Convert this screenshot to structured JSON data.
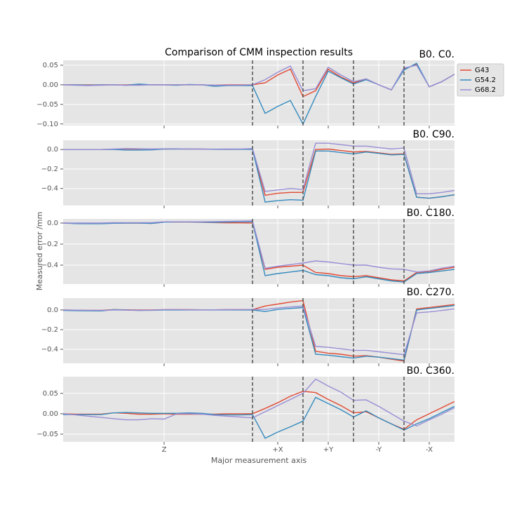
{
  "figure": {
    "title": "Comparison of CMM inspection results",
    "xlabel": "Major measurement axis",
    "ylabel": "Measured error /mm"
  },
  "chart_data": [
    {
      "type": "line",
      "title": "B0. C0.",
      "legend": "outside upper right",
      "x": [
        0,
        1,
        2,
        3,
        4,
        5,
        6,
        7,
        8,
        9,
        10,
        11,
        12,
        13,
        14,
        15,
        16,
        17,
        18,
        19,
        20,
        21,
        22,
        23,
        24,
        25,
        26,
        27,
        28,
        29,
        30,
        31
      ],
      "xlim": [
        0,
        31
      ],
      "xticks": [
        {
          "value": 8,
          "label": "Z"
        },
        {
          "value": 17,
          "label": "+X"
        },
        {
          "value": 21,
          "label": "+Y"
        },
        {
          "value": 25,
          "label": "-Y"
        },
        {
          "value": 29,
          "label": "-X"
        }
      ],
      "vlines": [
        15,
        19,
        23,
        27
      ],
      "ylim": [
        -0.104,
        0.0625
      ],
      "yticks": [
        0.05,
        {
          "value": 0,
          "label": "0.00"
        },
        {
          "value": -0.05,
          "label": "−0.05"
        },
        {
          "value": -0.1,
          "label": "−0.10"
        }
      ],
      "series": [
        {
          "name": "G43",
          "color": "#E24A33",
          "values": [
            0,
            0,
            0,
            0,
            0,
            0,
            0.001,
            0,
            0,
            0,
            0,
            0,
            -0.001,
            0,
            0,
            0,
            0.005,
            0.025,
            0.04,
            -0.03,
            -0.015,
            0.04,
            0.02,
            0.005,
            0.015,
            0,
            -0.013,
            0.04,
            0.052,
            -0.005,
            0.008,
            0.027
          ]
        },
        {
          "name": "G54.2",
          "color": "#348ABD",
          "values": [
            0,
            0,
            -0.001,
            0,
            0,
            -0.001,
            0.002,
            0,
            0,
            -0.001,
            0.001,
            0,
            -0.004,
            -0.002,
            -0.002,
            -0.002,
            -0.073,
            -0.055,
            -0.04,
            -0.1,
            -0.03,
            0.035,
            0.018,
            0.002,
            0.013,
            0,
            -0.013,
            0.038,
            0.055,
            -0.005,
            0.008,
            0.027
          ]
        },
        {
          "name": "G68.2",
          "color": "#988ED5",
          "values": [
            0,
            -0.001,
            -0.002,
            -0.001,
            0,
            -0.001,
            -0.001,
            0,
            0,
            0,
            0,
            0,
            -0.001,
            -0.001,
            -0.001,
            0,
            0.013,
            0.032,
            0.048,
            -0.015,
            -0.01,
            0.045,
            0.025,
            0.008,
            0.015,
            0,
            -0.013,
            0.043,
            0.05,
            -0.005,
            0.008,
            0.027
          ]
        }
      ]
    },
    {
      "type": "line",
      "title": "B0. C90.",
      "x": [
        0,
        1,
        2,
        3,
        4,
        5,
        6,
        7,
        8,
        9,
        10,
        11,
        12,
        13,
        14,
        15,
        16,
        17,
        18,
        19,
        20,
        21,
        22,
        23,
        24,
        25,
        26,
        27,
        28,
        29,
        30,
        31
      ],
      "xlim": [
        0,
        31
      ],
      "xticks": [
        {
          "value": 8,
          "label": "Z"
        },
        {
          "value": 17,
          "label": "+X"
        },
        {
          "value": 21,
          "label": "+Y"
        },
        {
          "value": 25,
          "label": "-Y"
        },
        {
          "value": 29,
          "label": "-X"
        }
      ],
      "vlines": [
        15,
        19,
        23,
        27
      ],
      "ylim": [
        -0.575,
        0.095
      ],
      "yticks": [
        {
          "value": 0,
          "label": "0.0"
        },
        {
          "value": -0.2,
          "label": "−0.2"
        },
        {
          "value": -0.4,
          "label": "−0.4"
        }
      ],
      "series": [
        {
          "name": "G43",
          "color": "#E24A33",
          "values": [
            0,
            0,
            0,
            0,
            0.003,
            0.005,
            0.005,
            0.004,
            0.005,
            0.006,
            0.005,
            0.004,
            0.003,
            0.002,
            0.003,
            0.005,
            -0.47,
            -0.45,
            -0.44,
            -0.44,
            0,
            0.005,
            -0.01,
            -0.025,
            -0.02,
            -0.035,
            -0.05,
            -0.045,
            -0.49,
            -0.5,
            -0.485,
            -0.465
          ]
        },
        {
          "name": "G54.2",
          "color": "#348ABD",
          "values": [
            0,
            0,
            0,
            0,
            0,
            -0.005,
            -0.005,
            -0.004,
            0.005,
            0.005,
            0.005,
            0.004,
            0.002,
            0.002,
            0.002,
            0.003,
            -0.54,
            -0.525,
            -0.515,
            -0.52,
            -0.015,
            -0.015,
            -0.03,
            -0.045,
            -0.025,
            -0.04,
            -0.055,
            -0.05,
            -0.49,
            -0.5,
            -0.485,
            -0.465
          ]
        },
        {
          "name": "G68.2",
          "color": "#988ED5",
          "values": [
            0,
            0,
            0,
            0,
            0.005,
            0.01,
            0.008,
            0.005,
            0.008,
            0.008,
            0.006,
            0.005,
            0.004,
            0.005,
            0.006,
            0.01,
            -0.43,
            -0.415,
            -0.4,
            -0.41,
            0.065,
            0.065,
            0.05,
            0.035,
            0.035,
            0.02,
            0.005,
            0.015,
            -0.455,
            -0.455,
            -0.44,
            -0.42
          ]
        }
      ]
    },
    {
      "type": "line",
      "title": "B0. C180.",
      "x": [
        0,
        1,
        2,
        3,
        4,
        5,
        6,
        7,
        8,
        9,
        10,
        11,
        12,
        13,
        14,
        15,
        16,
        17,
        18,
        19,
        20,
        21,
        22,
        23,
        24,
        25,
        26,
        27,
        28,
        29,
        30,
        31
      ],
      "xlim": [
        0,
        31
      ],
      "xticks": [
        {
          "value": 8,
          "label": "Z"
        },
        {
          "value": 17,
          "label": "+X"
        },
        {
          "value": 21,
          "label": "+Y"
        },
        {
          "value": 25,
          "label": "-Y"
        },
        {
          "value": 29,
          "label": "-X"
        }
      ],
      "vlines": [
        15,
        19,
        23,
        27
      ],
      "ylim": [
        -0.58,
        0.04
      ],
      "yticks": [
        {
          "value": 0,
          "label": "0.0"
        },
        {
          "value": -0.2,
          "label": "−0.2"
        },
        {
          "value": -0.4,
          "label": "−0.4"
        }
      ],
      "series": [
        {
          "name": "G43",
          "color": "#E24A33",
          "values": [
            0,
            -0.002,
            -0.003,
            -0.003,
            0,
            0,
            0,
            -0.003,
            0.008,
            0.008,
            0.008,
            0.006,
            0.004,
            0.002,
            0.002,
            0.001,
            -0.44,
            -0.42,
            -0.41,
            -0.4,
            -0.47,
            -0.48,
            -0.5,
            -0.51,
            -0.5,
            -0.52,
            -0.54,
            -0.55,
            -0.47,
            -0.46,
            -0.44,
            -0.42
          ]
        },
        {
          "name": "G54.2",
          "color": "#348ABD",
          "values": [
            0,
            -0.005,
            -0.006,
            -0.006,
            -0.002,
            0,
            0,
            -0.004,
            0.008,
            0.01,
            0.01,
            0.008,
            0.006,
            0.01,
            0.012,
            0.012,
            -0.5,
            -0.48,
            -0.465,
            -0.45,
            -0.49,
            -0.5,
            -0.52,
            -0.53,
            -0.51,
            -0.53,
            -0.55,
            -0.56,
            -0.48,
            -0.47,
            -0.455,
            -0.44
          ]
        },
        {
          "name": "G68.2",
          "color": "#988ED5",
          "values": [
            0,
            0,
            0,
            0,
            0.004,
            0.004,
            0.004,
            0.004,
            0.012,
            0.012,
            0.012,
            0.012,
            0.014,
            0.016,
            0.018,
            0.02,
            -0.43,
            -0.41,
            -0.395,
            -0.38,
            -0.36,
            -0.37,
            -0.385,
            -0.4,
            -0.4,
            -0.42,
            -0.435,
            -0.44,
            -0.465,
            -0.455,
            -0.43,
            -0.41
          ]
        }
      ]
    },
    {
      "type": "line",
      "title": "B0. C270.",
      "x": [
        0,
        1,
        2,
        3,
        4,
        5,
        6,
        7,
        8,
        9,
        10,
        11,
        12,
        13,
        14,
        15,
        16,
        17,
        18,
        19,
        20,
        21,
        22,
        23,
        24,
        25,
        26,
        27,
        28,
        29,
        30,
        31
      ],
      "xlim": [
        0,
        31
      ],
      "xticks": [
        {
          "value": 8,
          "label": "Z"
        },
        {
          "value": 17,
          "label": "+X"
        },
        {
          "value": 21,
          "label": "+Y"
        },
        {
          "value": 25,
          "label": "-Y"
        },
        {
          "value": 29,
          "label": "-X"
        }
      ],
      "vlines": [
        15,
        19,
        23,
        27
      ],
      "ylim": [
        -0.543,
        0.121
      ],
      "yticks": [
        {
          "value": 0,
          "label": "0.0"
        },
        {
          "value": -0.2,
          "label": "−0.2"
        },
        {
          "value": -0.4,
          "label": "−0.4"
        }
      ],
      "series": [
        {
          "name": "G43",
          "color": "#E24A33",
          "values": [
            0,
            -0.002,
            -0.003,
            -0.003,
            0.003,
            0.002,
            0,
            0,
            0.004,
            0.004,
            0.003,
            0.002,
            0.002,
            0.003,
            0.003,
            0.004,
            0.04,
            0.06,
            0.08,
            0.095,
            -0.42,
            -0.44,
            -0.45,
            -0.47,
            -0.465,
            -0.48,
            -0.5,
            -0.52,
            0.01,
            0.025,
            0.04,
            0.055
          ]
        },
        {
          "name": "G54.2",
          "color": "#348ABD",
          "values": [
            -0.005,
            -0.007,
            -0.009,
            -0.01,
            0.003,
            0,
            -0.004,
            -0.003,
            0,
            0,
            0,
            0,
            0,
            0,
            0,
            0,
            -0.015,
            0.005,
            0.015,
            0.025,
            -0.45,
            -0.46,
            -0.475,
            -0.49,
            -0.47,
            -0.48,
            -0.495,
            -0.51,
            0,
            0.015,
            0.03,
            0.045
          ]
        },
        {
          "name": "G68.2",
          "color": "#988ED5",
          "values": [
            0,
            -0.002,
            -0.004,
            -0.005,
            0,
            -0.002,
            -0.004,
            -0.002,
            0.004,
            0.004,
            0.002,
            0.001,
            0.002,
            0.003,
            0.004,
            0.005,
            0.005,
            0.02,
            0.03,
            0.04,
            -0.37,
            -0.38,
            -0.395,
            -0.41,
            -0.41,
            -0.425,
            -0.44,
            -0.455,
            -0.03,
            -0.02,
            -0.005,
            0.01
          ]
        }
      ]
    },
    {
      "type": "line",
      "title": "B0. C360.",
      "x": [
        0,
        1,
        2,
        3,
        4,
        5,
        6,
        7,
        8,
        9,
        10,
        11,
        12,
        13,
        14,
        15,
        16,
        17,
        18,
        19,
        20,
        21,
        22,
        23,
        24,
        25,
        26,
        27,
        28,
        29,
        30,
        31
      ],
      "xlim": [
        0,
        31
      ],
      "xticks": [
        {
          "value": 8,
          "label": "Z"
        },
        {
          "value": 17,
          "label": "+X"
        },
        {
          "value": 21,
          "label": "+Y"
        },
        {
          "value": 25,
          "label": "-Y"
        },
        {
          "value": 29,
          "label": "-X"
        }
      ],
      "vlines": [
        15,
        19,
        23,
        27
      ],
      "ylim": [
        -0.069,
        0.091
      ],
      "yticks": [
        0.05,
        {
          "value": 0,
          "label": "0.00"
        },
        {
          "value": -0.05,
          "label": "−0.05"
        }
      ],
      "series": [
        {
          "name": "G43",
          "color": "#E24A33",
          "values": [
            0,
            -0.001,
            -0.001,
            -0.001,
            0.002,
            0.001,
            -0.001,
            -0.001,
            0,
            -0.001,
            -0.001,
            -0.001,
            -0.001,
            0,
            0,
            0,
            0.013,
            0.027,
            0.043,
            0.055,
            0.052,
            0.035,
            0.02,
            0.002,
            0.005,
            -0.01,
            -0.025,
            -0.038,
            -0.015,
            0,
            0.015,
            0.03
          ]
        },
        {
          "name": "G54.2",
          "color": "#348ABD",
          "values": [
            -0.002,
            -0.002,
            -0.002,
            -0.002,
            0.002,
            0.003,
            0.002,
            0.001,
            0.001,
            0.001,
            0.002,
            0.001,
            -0.002,
            -0.003,
            -0.003,
            -0.002,
            -0.06,
            -0.045,
            -0.032,
            -0.018,
            0.04,
            0.025,
            0.01,
            -0.008,
            0.007,
            -0.01,
            -0.025,
            -0.04,
            -0.025,
            -0.012,
            0.003,
            0.018
          ]
        },
        {
          "name": "G68.2",
          "color": "#988ED5",
          "values": [
            0,
            -0.003,
            -0.006,
            -0.009,
            -0.012,
            -0.015,
            -0.015,
            -0.012,
            -0.013,
            0,
            0,
            -0.001,
            -0.004,
            -0.006,
            -0.008,
            -0.01,
            0.005,
            0.02,
            0.035,
            0.05,
            0.085,
            0.068,
            0.053,
            0.033,
            0.034,
            0.018,
            0,
            -0.018,
            -0.03,
            -0.015,
            -0.001,
            0.015
          ]
        }
      ]
    }
  ]
}
